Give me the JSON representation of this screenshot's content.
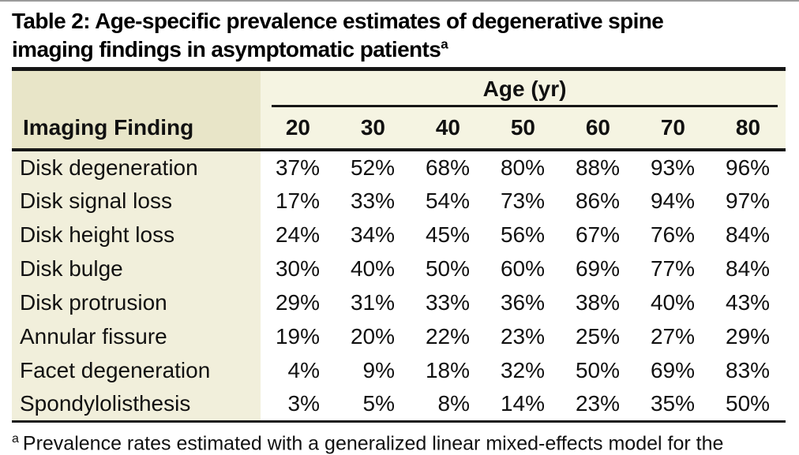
{
  "title": {
    "line1": "Table 2: Age-specific prevalence estimates of degenerative spine",
    "line2": "imaging findings in asymptomatic patients",
    "superscript": "a"
  },
  "table": {
    "row_header_label": "Imaging Finding",
    "age_group_label": "Age (yr)",
    "age_columns": [
      "20",
      "30",
      "40",
      "50",
      "60",
      "70",
      "80"
    ],
    "rows": [
      {
        "finding": "Disk degeneration",
        "values": [
          "37%",
          "52%",
          "68%",
          "80%",
          "88%",
          "93%",
          "96%"
        ]
      },
      {
        "finding": "Disk signal loss",
        "values": [
          "17%",
          "33%",
          "54%",
          "73%",
          "86%",
          "94%",
          "97%"
        ]
      },
      {
        "finding": "Disk height loss",
        "values": [
          "24%",
          "34%",
          "45%",
          "56%",
          "67%",
          "76%",
          "84%"
        ]
      },
      {
        "finding": "Disk bulge",
        "values": [
          "30%",
          "40%",
          "50%",
          "60%",
          "69%",
          "77%",
          "84%"
        ]
      },
      {
        "finding": "Disk protrusion",
        "values": [
          "29%",
          "31%",
          "33%",
          "36%",
          "38%",
          "40%",
          "43%"
        ]
      },
      {
        "finding": "Annular fissure",
        "values": [
          "19%",
          "20%",
          "22%",
          "23%",
          "25%",
          "27%",
          "29%"
        ]
      },
      {
        "finding": "Facet degeneration",
        "values": [
          "4%",
          "9%",
          "18%",
          "32%",
          "50%",
          "69%",
          "83%"
        ]
      },
      {
        "finding": "Spondylolisthesis",
        "values": [
          "3%",
          "5%",
          "8%",
          "14%",
          "23%",
          "35%",
          "50%"
        ]
      }
    ]
  },
  "footnote": {
    "marker": "a",
    "text": "Prevalence rates estimated with a generalized linear mixed-effects model for the"
  },
  "colors": {
    "header_left_bg": "#e8e5c8",
    "header_right_bg": "#f5f4e2",
    "body_first_column_bg": "#f1efdb",
    "rule": "#161616",
    "top_edge": "#9b9b9b",
    "text": "#111111"
  }
}
